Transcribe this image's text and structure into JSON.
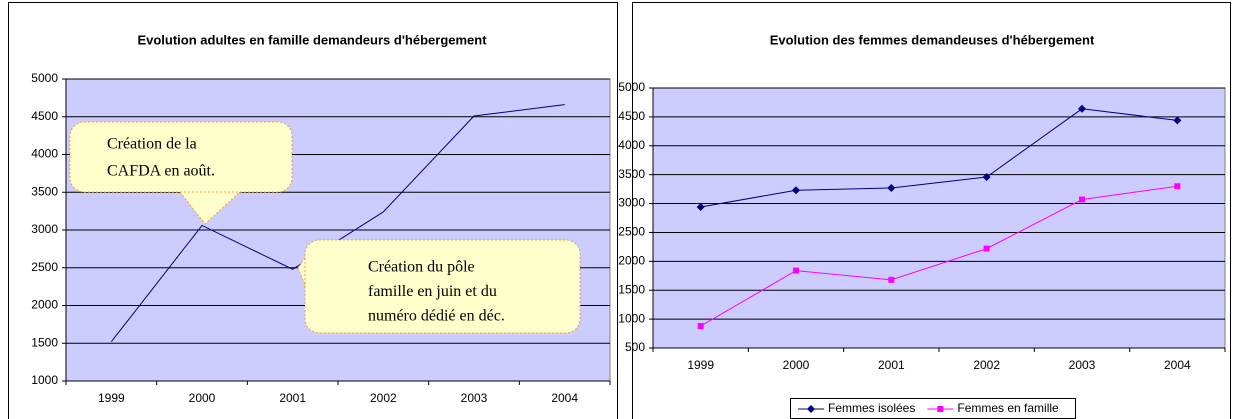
{
  "chart_data": [
    {
      "type": "line",
      "title": "Evolution adultes en famille demandeurs d'hébergement",
      "categories": [
        "1999",
        "2000",
        "2001",
        "2002",
        "2003",
        "2004"
      ],
      "series": [
        {
          "color": "#000080",
          "values": [
            1520,
            3060,
            2480,
            3240,
            4510,
            4660
          ]
        }
      ],
      "ylim": [
        1000,
        5000
      ],
      "yticks": [
        1000,
        1500,
        2000,
        2500,
        3000,
        3500,
        4000,
        4500,
        5000
      ],
      "grid": true,
      "annotations": [
        {
          "lines": [
            "Création de la",
            "CAFDA en août."
          ]
        },
        {
          "lines": [
            "Création du pôle",
            "famille en juin et  du",
            "numéro dédié en déc."
          ]
        }
      ]
    },
    {
      "type": "line",
      "title": "Evolution des femmes demandeuses d'hébergement",
      "categories": [
        "1999",
        "2000",
        "2001",
        "2002",
        "2003",
        "2004"
      ],
      "series": [
        {
          "name": "Femmes isolées",
          "color": "#000080",
          "marker": "diamond",
          "values": [
            2940,
            3230,
            3270,
            3460,
            4640,
            4440
          ]
        },
        {
          "name": "Femmes en famille",
          "color": "#ff00ff",
          "marker": "square",
          "values": [
            880,
            1840,
            1680,
            2220,
            3070,
            3300
          ]
        }
      ],
      "ylim": [
        500,
        5000
      ],
      "yticks": [
        500,
        1000,
        1500,
        2000,
        2500,
        3000,
        3500,
        4000,
        4500,
        5000
      ],
      "grid": true,
      "legend": "bottom"
    }
  ]
}
